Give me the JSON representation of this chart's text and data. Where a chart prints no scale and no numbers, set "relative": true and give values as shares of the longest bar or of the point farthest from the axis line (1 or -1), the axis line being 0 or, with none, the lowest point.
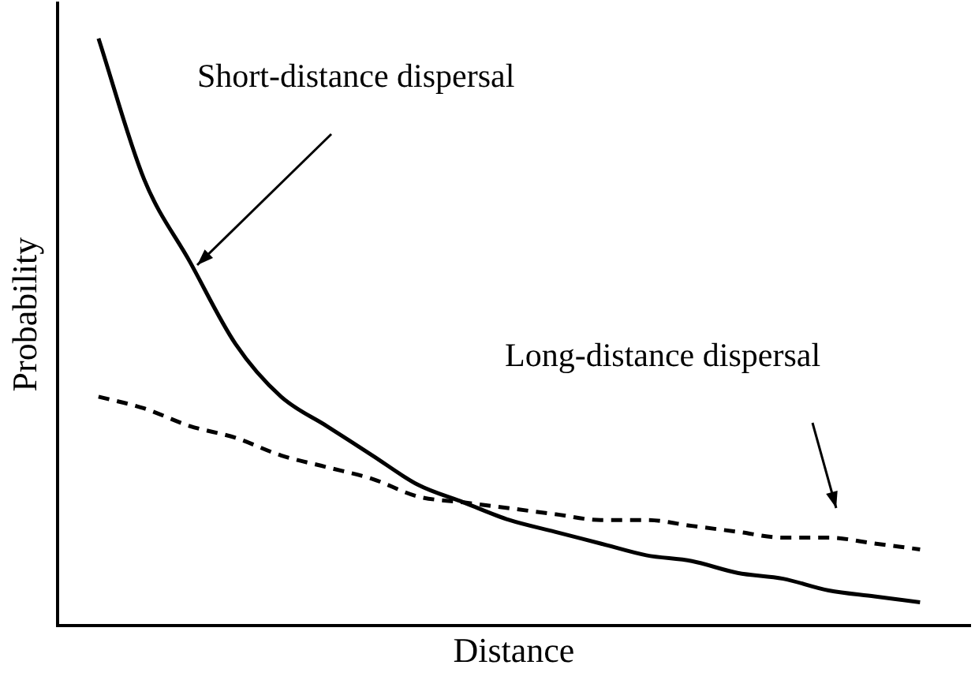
{
  "chart_data": {
    "type": "line",
    "relative": true,
    "xlabel": "Distance",
    "ylabel": "Probability",
    "categories": [
      null,
      null,
      null,
      null,
      null,
      null,
      null,
      null,
      null,
      null,
      null,
      null,
      null,
      null,
      null,
      null,
      null,
      null,
      null
    ],
    "series": [
      {
        "color": "#000000",
        "line_style": "solid",
        "values": [
          1,
          0.76,
          0.62,
          0.48,
          0.39,
          0.34,
          0.29,
          0.24,
          0.21,
          0.18,
          0.16,
          0.14,
          0.12,
          0.11,
          0.09,
          0.08,
          0.06,
          0.05,
          0.04
        ]
      },
      {
        "color": "#000000",
        "line_style": "dashed",
        "values": [
          0.39,
          0.37,
          0.34,
          0.32,
          0.29,
          0.27,
          0.25,
          0.22,
          0.21,
          0.2,
          0.19,
          0.18,
          0.18,
          0.17,
          0.16,
          0.15,
          0.15,
          0.14,
          0.13
        ]
      }
    ],
    "annotations": [
      "Short-distance dispersal",
      "Long-distance dispersal"
    ],
    "legend": false,
    "grid": false,
    "marker": "none"
  }
}
